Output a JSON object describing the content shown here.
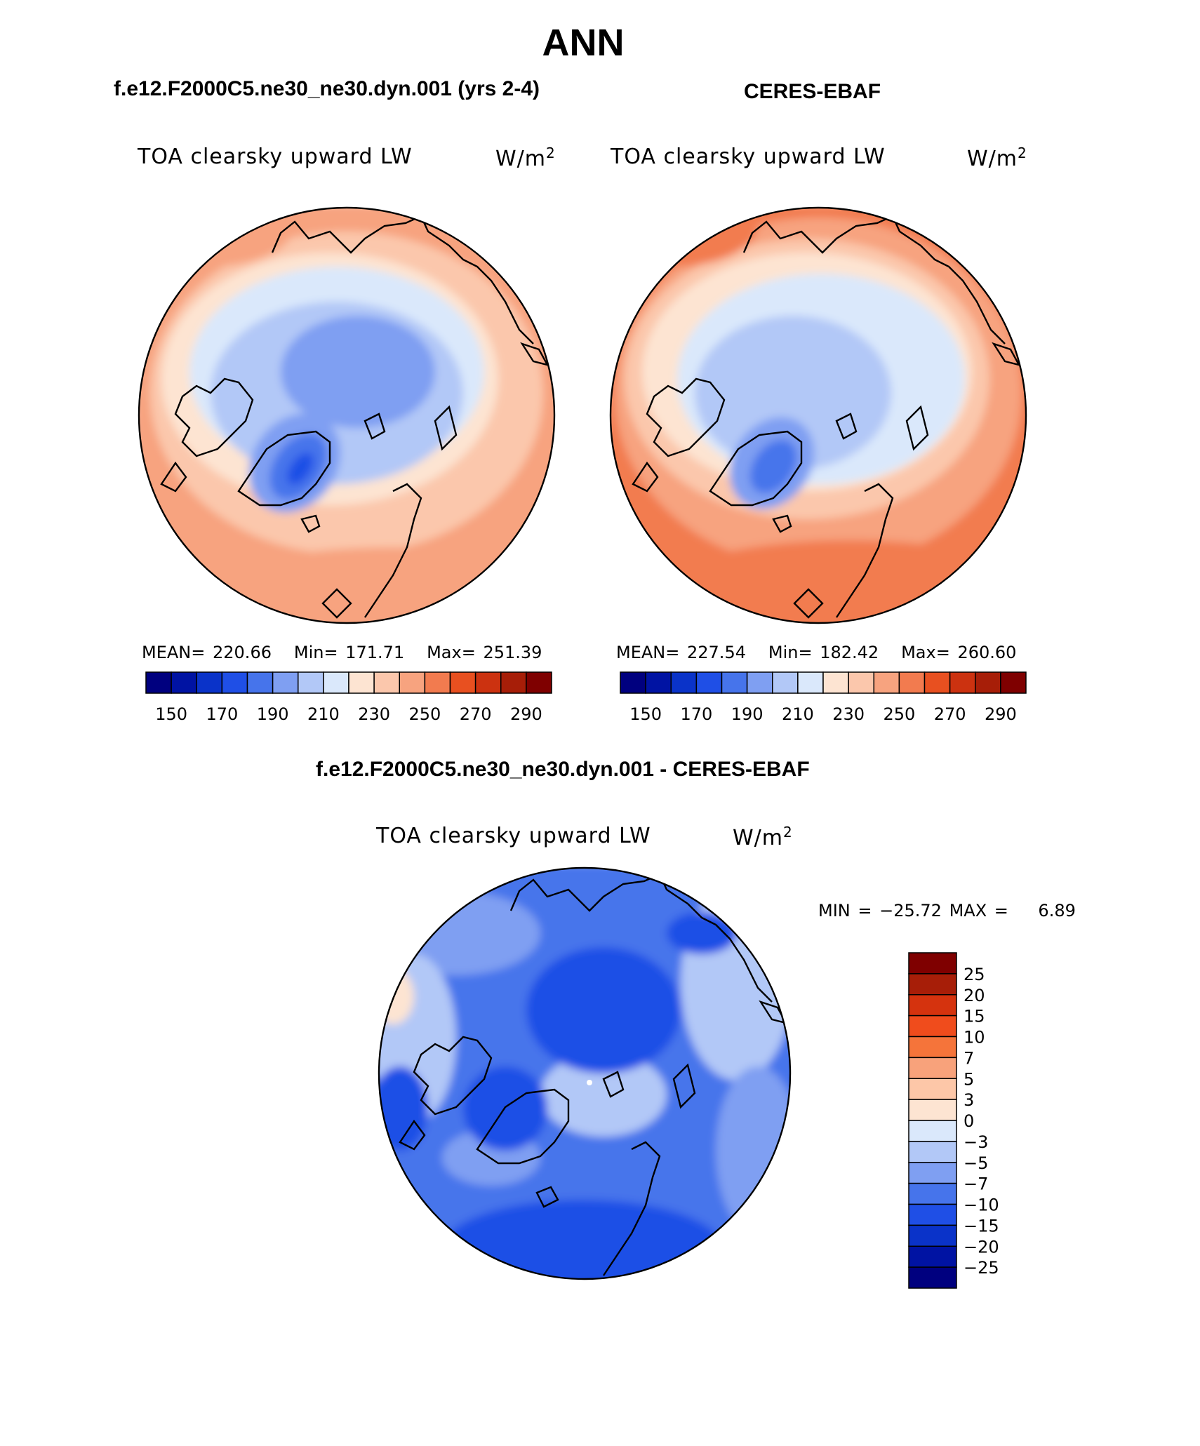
{
  "title": "ANN",
  "panels": [
    {
      "case_title": "f.e12.F2000C5.ne30_ne30.dyn.001 (yrs 2-4)",
      "variable": "TOA clearsky upward LW",
      "units": "W/m",
      "units_sup": "2",
      "stats": {
        "mean_label": "MEAN=",
        "mean": "220.66",
        "min_label": "Min=",
        "min": "171.71",
        "max_label": "Max=",
        "max": "251.39"
      }
    },
    {
      "case_title": "CERES-EBAF",
      "variable": "TOA clearsky upward LW",
      "units": "W/m",
      "units_sup": "2",
      "stats": {
        "mean_label": "MEAN=",
        "mean": "227.54",
        "min_label": "Min=",
        "min": "182.42",
        "max_label": "Max=",
        "max": "260.60"
      }
    }
  ],
  "abs_colorbar": {
    "colors": [
      "#00007f",
      "#0013a3",
      "#0a33c9",
      "#1f4fe6",
      "#4674eb",
      "#7f9ff2",
      "#b2c8f7",
      "#dae8fb",
      "#fde4d2",
      "#fbc7ac",
      "#f7a37f",
      "#f27b4f",
      "#e85020",
      "#cc3210",
      "#a71e08",
      "#7f0000"
    ],
    "tick_labels": [
      "150",
      "170",
      "190",
      "210",
      "230",
      "250",
      "270",
      "290"
    ]
  },
  "diff_panel": {
    "case_title": "f.e12.F2000C5.ne30_ne30.dyn.001 - CERES-EBAF",
    "variable": "TOA clearsky upward LW",
    "units": "W/m",
    "units_sup": "2",
    "min_label": "MIN =",
    "min": "−25.72",
    "max_label": "MAX =",
    "max": "6.89"
  },
  "diff_colorbar": {
    "colors_top_to_bottom": [
      "#7f0000",
      "#a71e08",
      "#d5330e",
      "#f04c1c",
      "#f5743a",
      "#f8a27b",
      "#fdc7a8",
      "#fde4d2",
      "#dae8fb",
      "#b2c8f7",
      "#7f9ff2",
      "#4674eb",
      "#1f4fe6",
      "#0a33c9",
      "#0013a3",
      "#00007f"
    ],
    "tick_labels": [
      "25",
      "20",
      "15",
      "10",
      "7",
      "5",
      "3",
      "0",
      "−3",
      "−5",
      "−7",
      "−10",
      "−15",
      "−20",
      "−25"
    ]
  }
}
